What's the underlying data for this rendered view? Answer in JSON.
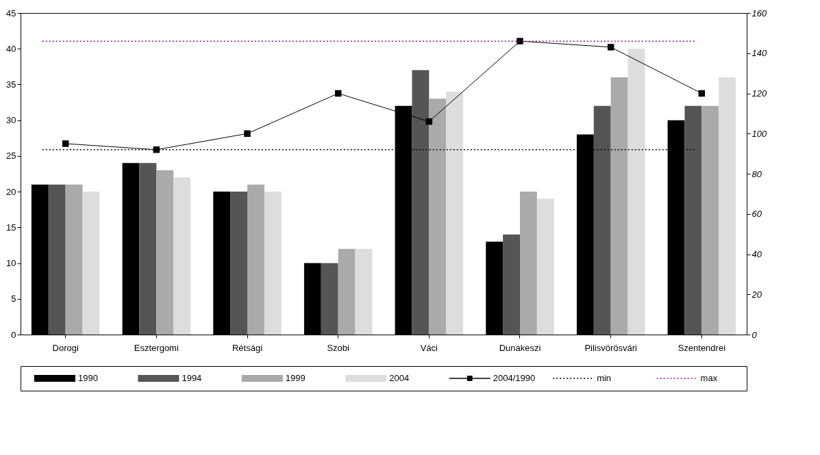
{
  "chart_data": {
    "type": "bar",
    "categories": [
      "Dorogi",
      "Esztergomi",
      "Rétsági",
      "Szobi",
      "Váci",
      "Dunakeszi",
      "Pilisvörösvári",
      "Szentendrei"
    ],
    "series": [
      {
        "name": "1990",
        "color": "#000000",
        "values": [
          21,
          24,
          20,
          10,
          32,
          13,
          28,
          30
        ]
      },
      {
        "name": "1994",
        "color": "#555555",
        "values": [
          21,
          24,
          20,
          10,
          37,
          14,
          32,
          32
        ]
      },
      {
        "name": "1999",
        "color": "#aaaaaa",
        "values": [
          21,
          23,
          21,
          12,
          33,
          20,
          36,
          32
        ]
      },
      {
        "name": "2004",
        "color": "#dddddd",
        "values": [
          20,
          22,
          20,
          12,
          34,
          19,
          40,
          36
        ]
      },
      {
        "name": "2004/1990",
        "type": "line",
        "axis": "y2",
        "color": "#000000",
        "marker": "square",
        "line_style": "solid",
        "values": [
          95,
          92,
          100,
          120,
          106,
          146,
          143,
          120
        ]
      }
    ],
    "ylim": [
      0,
      45
    ],
    "yticks": [
      0,
      5,
      10,
      15,
      20,
      25,
      30,
      35,
      40,
      45
    ],
    "y2lim": [
      0,
      160
    ],
    "y2ticks": [
      0,
      20,
      40,
      60,
      80,
      100,
      120,
      140,
      160
    ],
    "ref_lines": [
      {
        "axis": "y2",
        "value": 92,
        "label": "min",
        "color": "#000000",
        "line_style": "dotted"
      },
      {
        "axis": "y2",
        "value": 146,
        "label": "max",
        "color": "#990099",
        "line_style": "dotted"
      }
    ],
    "grid": false,
    "legend": "bottom"
  }
}
